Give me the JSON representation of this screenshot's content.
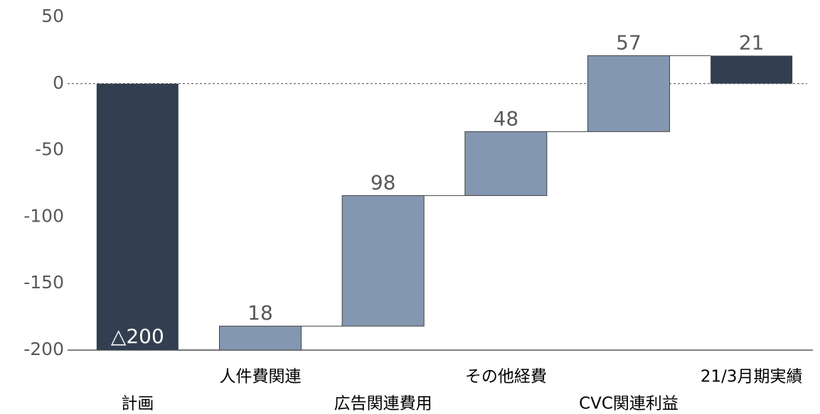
{
  "chart_data": {
    "type": "waterfall",
    "categories": [
      "計画",
      "人件費関連",
      "広告関連費用",
      "その他経費",
      "CVC関連利益",
      "21/3月期実績"
    ],
    "values": [
      -200,
      18,
      98,
      48,
      57,
      21
    ],
    "value_labels": [
      "△200",
      "18",
      "98",
      "48",
      "57",
      "21"
    ],
    "measure": [
      "total",
      "relative",
      "relative",
      "relative",
      "relative",
      "total"
    ],
    "color": "#8497b0",
    "total_color": "#333f50",
    "ylim": [
      -200,
      50
    ],
    "yticks": [
      -200,
      -150,
      -100,
      -50,
      0,
      50
    ]
  }
}
